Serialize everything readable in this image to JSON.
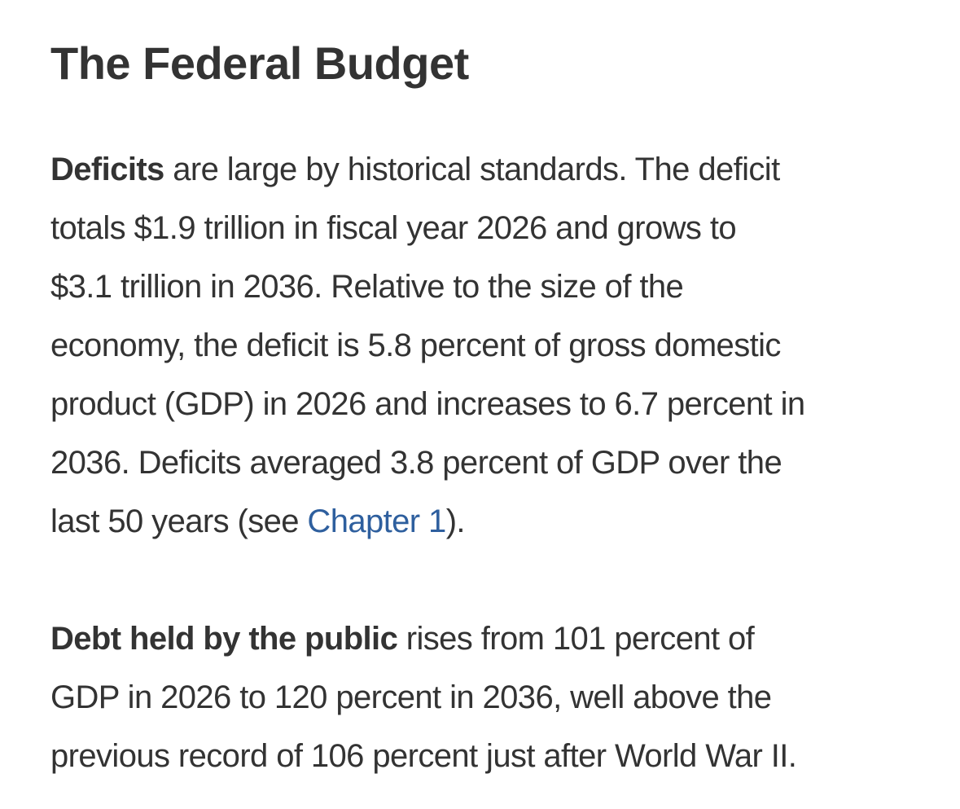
{
  "heading": "The Federal Budget",
  "colors": {
    "text": "#333333",
    "link": "#2e5f9e",
    "background": "#ffffff"
  },
  "deficits": {
    "lead": "Deficits",
    "line1_rest": " are large by historical standards. The deficit",
    "line2": "totals $1.9 trillion in fiscal year 2026 and grows to",
    "line3": "$3.1 trillion in 2036. Relative to the size of the",
    "line4": "economy, the deficit is 5.8 percent of gross domestic",
    "line5": "product (GDP) in 2026 and increases to 6.7 percent in",
    "line6": "2036. Deficits averaged 3.8 percent of GDP over the",
    "line7_before": "last 50 years (see ",
    "link_text": "Chapter 1",
    "line7_after": ")."
  },
  "debt": {
    "lead": "Debt held by the public",
    "line1_rest": " rises from 101 percent of",
    "line2": "GDP in 2026 to 120 percent in 2036, well above the",
    "line3": "previous record of 106 percent just after World War II."
  }
}
